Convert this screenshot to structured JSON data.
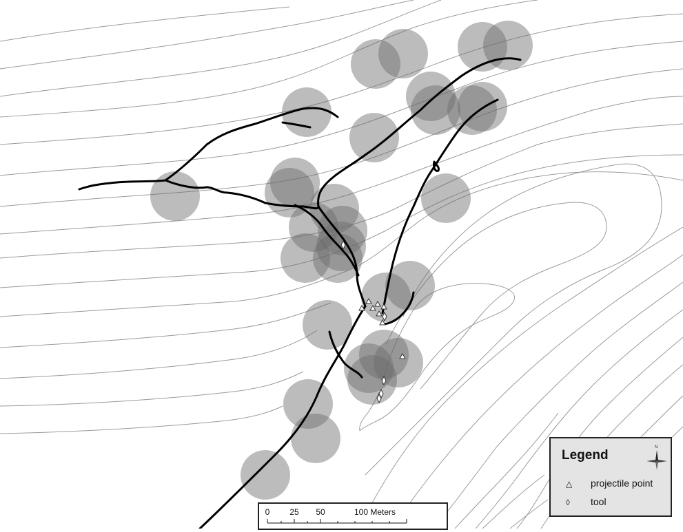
{
  "legend": {
    "title": "Legend",
    "north_label": "N",
    "items": [
      {
        "symbol": "△",
        "label": "projectile point"
      },
      {
        "symbol": "◊",
        "label": "tool"
      }
    ]
  },
  "scale_bar": {
    "ticks": [
      "0",
      "25",
      "50",
      "100 Meters"
    ]
  },
  "colors": {
    "buffer_fill": "#6a6a6a",
    "contour": "#9a9a9a",
    "trail": "#000000",
    "legend_bg": "#e4e4e4"
  }
}
